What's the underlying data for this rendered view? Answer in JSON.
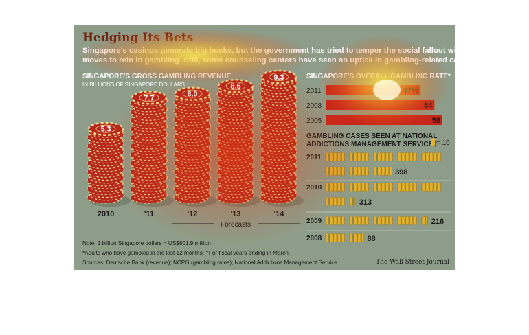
{
  "header": {
    "title": "Hedging Its Bets",
    "subtitle_line1": "Singapore's casinos generate big bucks, but the government has tried to temper the social fallout with",
    "subtitle_line2": "moves to rein in gambling. Still, some counseling centers have seen an uptick in gambling-related cases."
  },
  "colors": {
    "background": "#8e9d89",
    "chip_red": "#b5281d",
    "chip_cream": "#f0d98a",
    "bar_red": "#c8261a",
    "person_gold": "#e0b030",
    "heat_yellow": "#ffe84a",
    "heat_red": "#e23b12"
  },
  "chart_data": [
    {
      "type": "bar",
      "title": "SINGAPORE'S GROSS GAMBLING REVENUE",
      "subtitle": "IN BILLIONS OF SINGAPORE DOLLARS",
      "categories": [
        "2010",
        "'11",
        "'12",
        "'13",
        "'14"
      ],
      "values": [
        5.3,
        7.7,
        8.0,
        8.6,
        9.3
      ],
      "value_labels": [
        "5.3",
        "7.7",
        "8.0",
        "8.6",
        "9.3"
      ],
      "forecast_label": "Forecasts",
      "forecast_categories": [
        "'12",
        "'13",
        "'14"
      ],
      "ylim": [
        0,
        9.3
      ]
    },
    {
      "type": "bar",
      "title": "SINGAPORE'S OVERALL GAMBLING RATE*",
      "categories": [
        "2011",
        "2008",
        "2005"
      ],
      "values": [
        47,
        54,
        58
      ],
      "value_labels": [
        "47%",
        "54",
        "58"
      ],
      "xlim": [
        0,
        58
      ]
    },
    {
      "type": "bar",
      "title_line1": "GAMBLING CASES SEEN AT NATIONAL",
      "title_line2": "ADDICTIONS MANAGEMENT SERVICE",
      "title_marker": "†",
      "key": "= 10",
      "unit_per_icon": 10,
      "categories": [
        "2011",
        "2010",
        "2009",
        "2008"
      ],
      "values": [
        398,
        313,
        216,
        88
      ],
      "value_labels": [
        "398",
        "313",
        "216",
        "88"
      ]
    }
  ],
  "footer": {
    "note1": "Note: 1 billion Singapore dollars = US$801.9 million",
    "note2": "*Adults who have gambled in the last 12 months; †For fiscal years ending in March",
    "note3": "Sources: Deutsche Bank (revenue); NCPG (gambling rates); National Addictions Management Service",
    "credit": "The Wall Street Journal"
  }
}
